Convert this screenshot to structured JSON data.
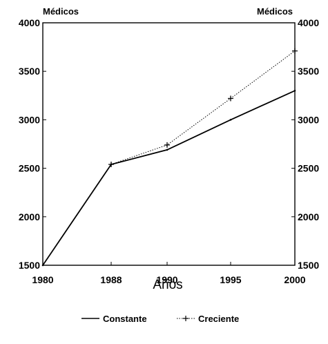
{
  "chart_data": {
    "type": "line",
    "ylabel_left": "Médicos",
    "ylabel_right": "Médicos",
    "xlabel": "Años",
    "categories": [
      "1980",
      "1988",
      "1990",
      "1995",
      "2000"
    ],
    "y_ticks": [
      1500,
      2000,
      2500,
      3000,
      3500,
      4000
    ],
    "ylim": [
      1500,
      4000
    ],
    "grid": false,
    "legend_position": "bottom",
    "series": [
      {
        "name": "Constante",
        "style": "solid",
        "marker": "none",
        "values": [
          1500,
          2540,
          2690,
          3000,
          3300
        ]
      },
      {
        "name": "Creciente",
        "style": "dotted",
        "marker": "plus",
        "values": [
          null,
          2540,
          2740,
          3220,
          3710
        ]
      }
    ]
  }
}
